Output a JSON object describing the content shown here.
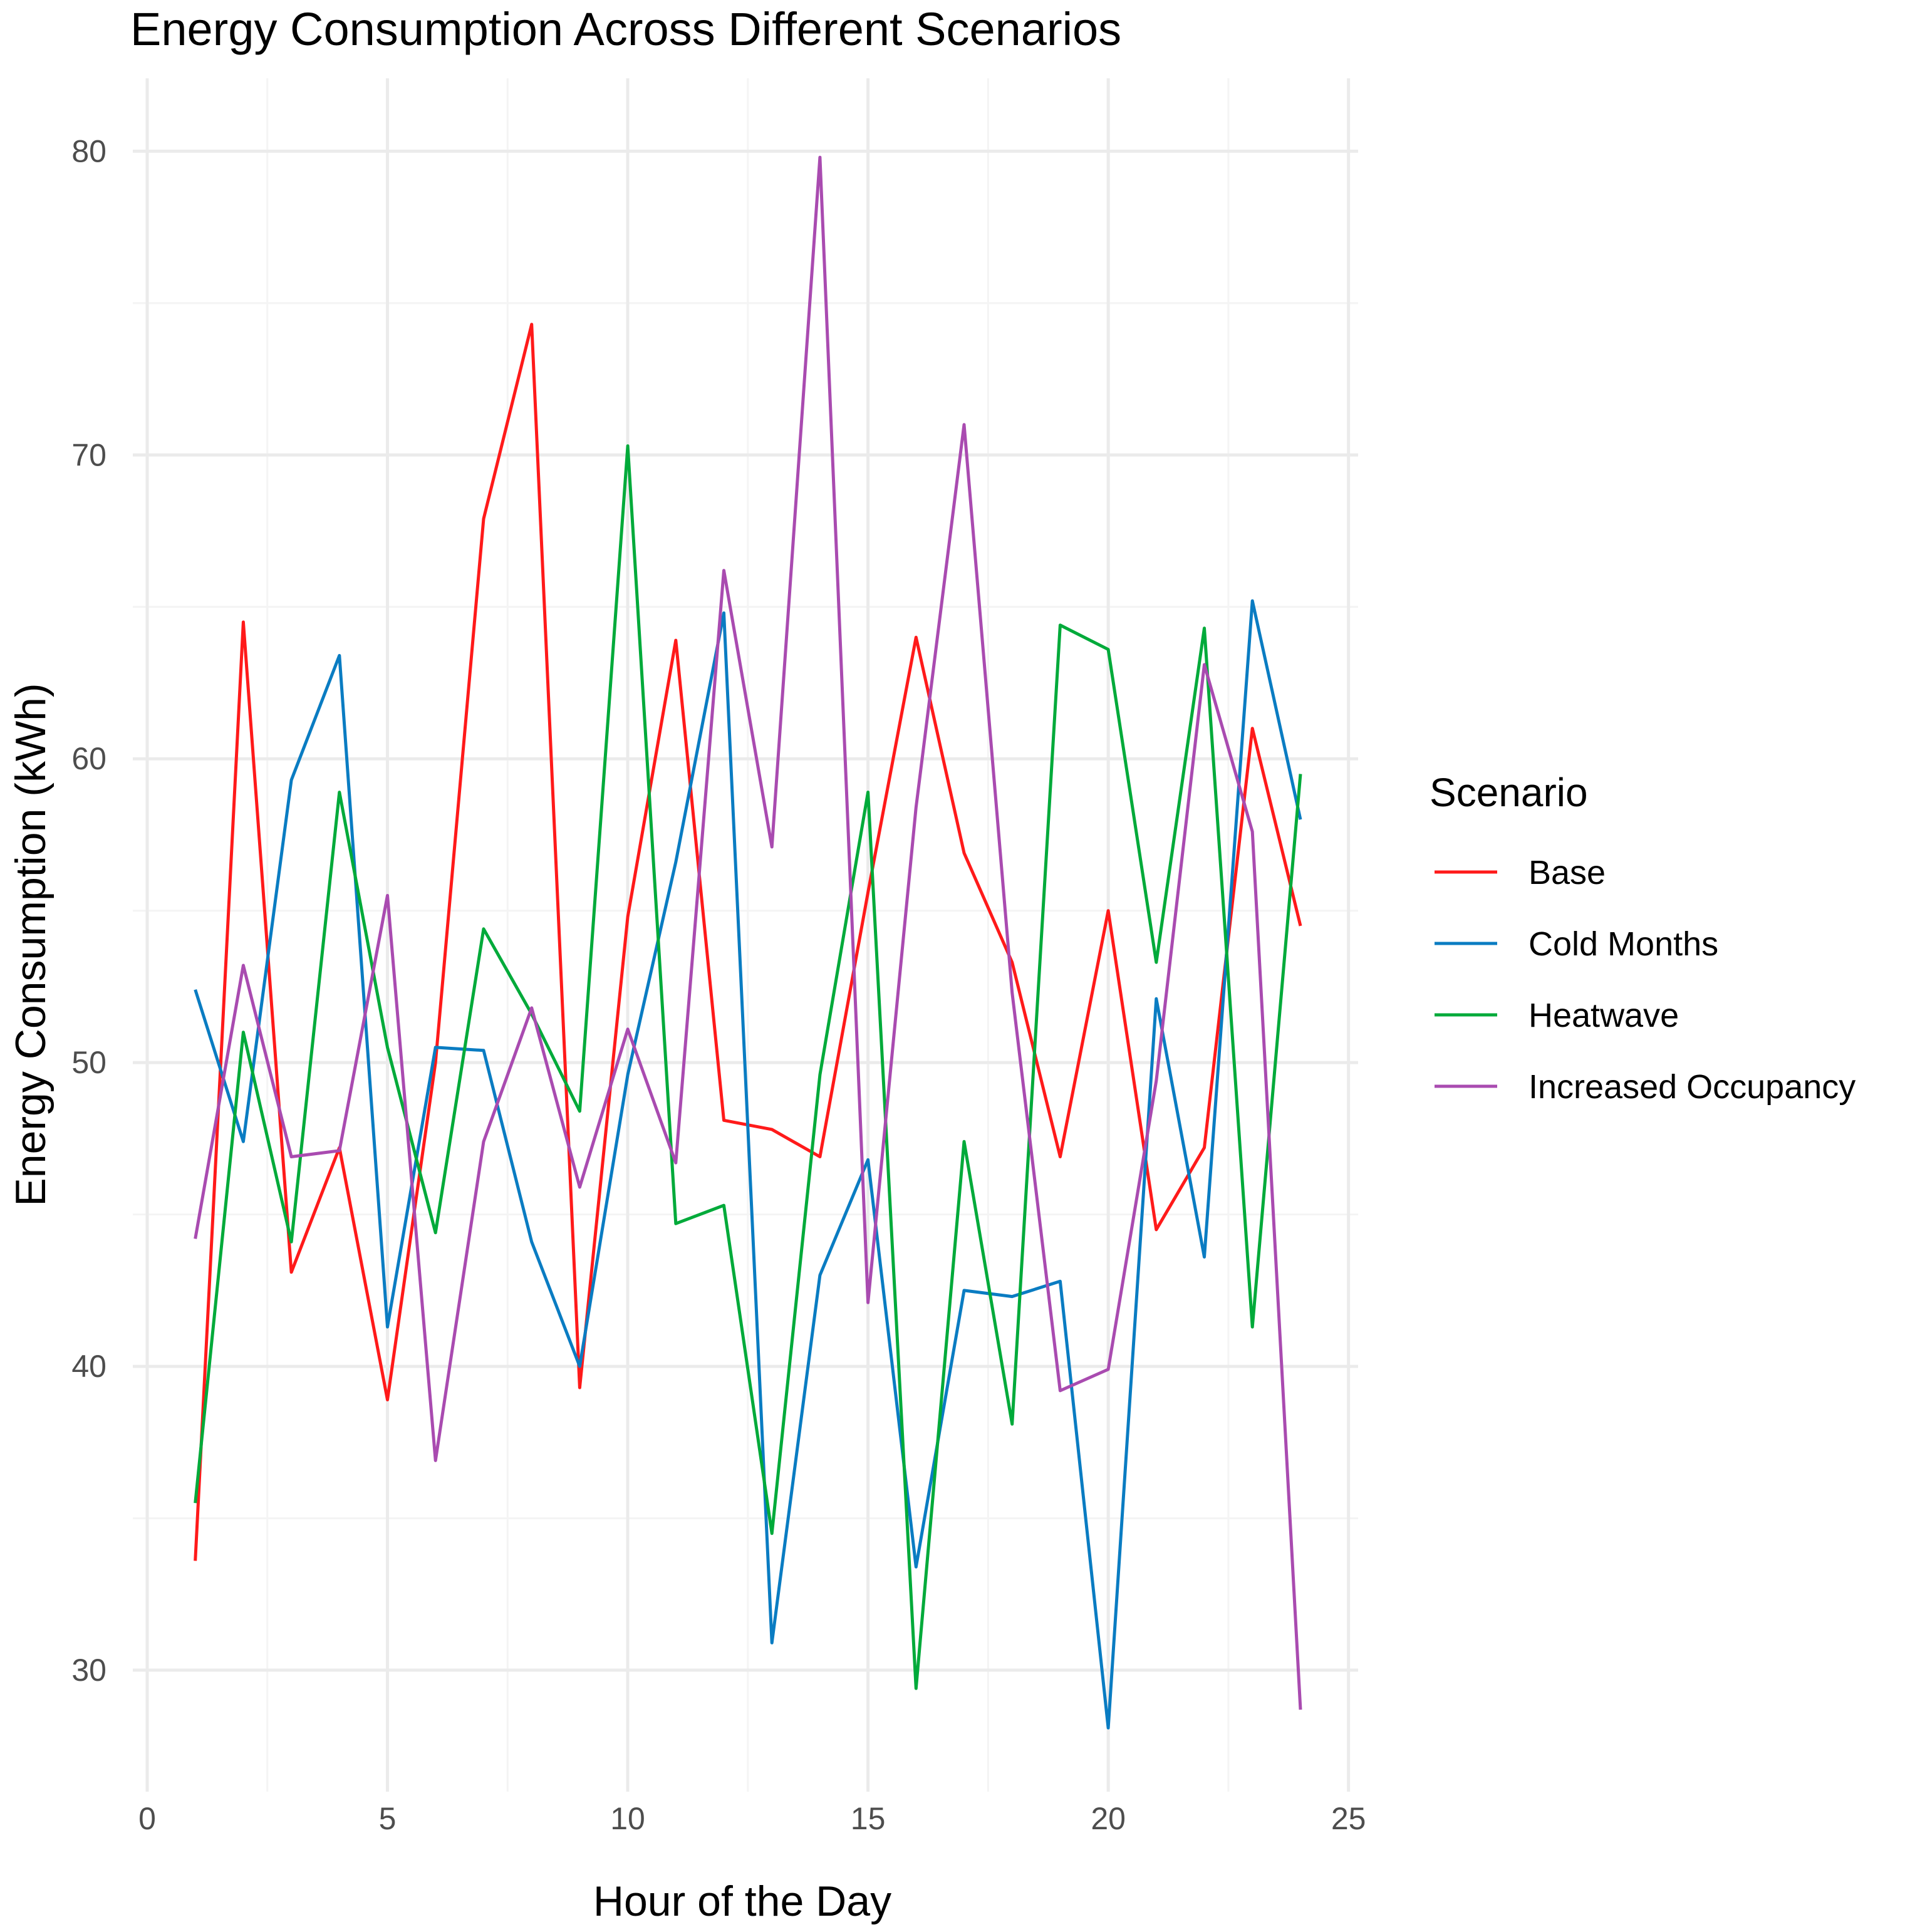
{
  "chart_data": {
    "type": "line",
    "title": "Energy Consumption Across Different Scenarios",
    "xlabel": "Hour of the Day",
    "ylabel": "Energy Consumption (kWh)",
    "xlim": [
      -0.3,
      25.2
    ],
    "ylim": [
      26.0,
      82.4
    ],
    "xticks": [
      0,
      5,
      10,
      15,
      20,
      25
    ],
    "yticks": [
      30,
      40,
      50,
      60,
      70,
      80
    ],
    "x": [
      1,
      2,
      3,
      4,
      5,
      6,
      7,
      8,
      9,
      10,
      11,
      12,
      13,
      14,
      15,
      16,
      17,
      18,
      19,
      20,
      21,
      22,
      23,
      24
    ],
    "legend": {
      "title": "Scenario",
      "position": "right"
    },
    "grid": true,
    "series": [
      {
        "name": "Base",
        "color": "#ff1a1a",
        "values": [
          33.6,
          64.5,
          43.1,
          47.2,
          38.9,
          50.0,
          67.9,
          74.3,
          39.3,
          54.8,
          63.9,
          48.1,
          47.8,
          46.9,
          55.6,
          64.0,
          56.9,
          53.3,
          46.9,
          55.0,
          44.5,
          47.2,
          61.0,
          54.5
        ]
      },
      {
        "name": "Cold Months",
        "color": "#0a7cc2",
        "values": [
          52.4,
          47.4,
          59.3,
          63.4,
          41.3,
          50.5,
          50.4,
          44.1,
          40.0,
          49.6,
          56.6,
          64.8,
          30.9,
          43.0,
          46.8,
          33.4,
          42.5,
          42.3,
          42.8,
          28.1,
          52.1,
          43.6,
          65.2,
          58.0
        ]
      },
      {
        "name": "Heatwave",
        "color": "#00aa3a",
        "values": [
          35.5,
          51.0,
          44.1,
          58.9,
          50.5,
          44.4,
          54.4,
          51.6,
          48.4,
          70.3,
          44.7,
          45.3,
          34.5,
          49.6,
          58.9,
          29.4,
          47.4,
          38.1,
          64.4,
          63.6,
          53.3,
          64.3,
          41.3,
          59.5
        ]
      },
      {
        "name": "Increased Occupancy",
        "color": "#a94bb0",
        "values": [
          44.2,
          53.2,
          46.9,
          47.1,
          55.5,
          36.9,
          47.4,
          51.8,
          45.9,
          51.1,
          46.7,
          66.2,
          57.1,
          79.8,
          42.1,
          58.4,
          71.0,
          52.3,
          39.2,
          39.9,
          49.4,
          63.1,
          57.6,
          28.7
        ]
      }
    ]
  }
}
